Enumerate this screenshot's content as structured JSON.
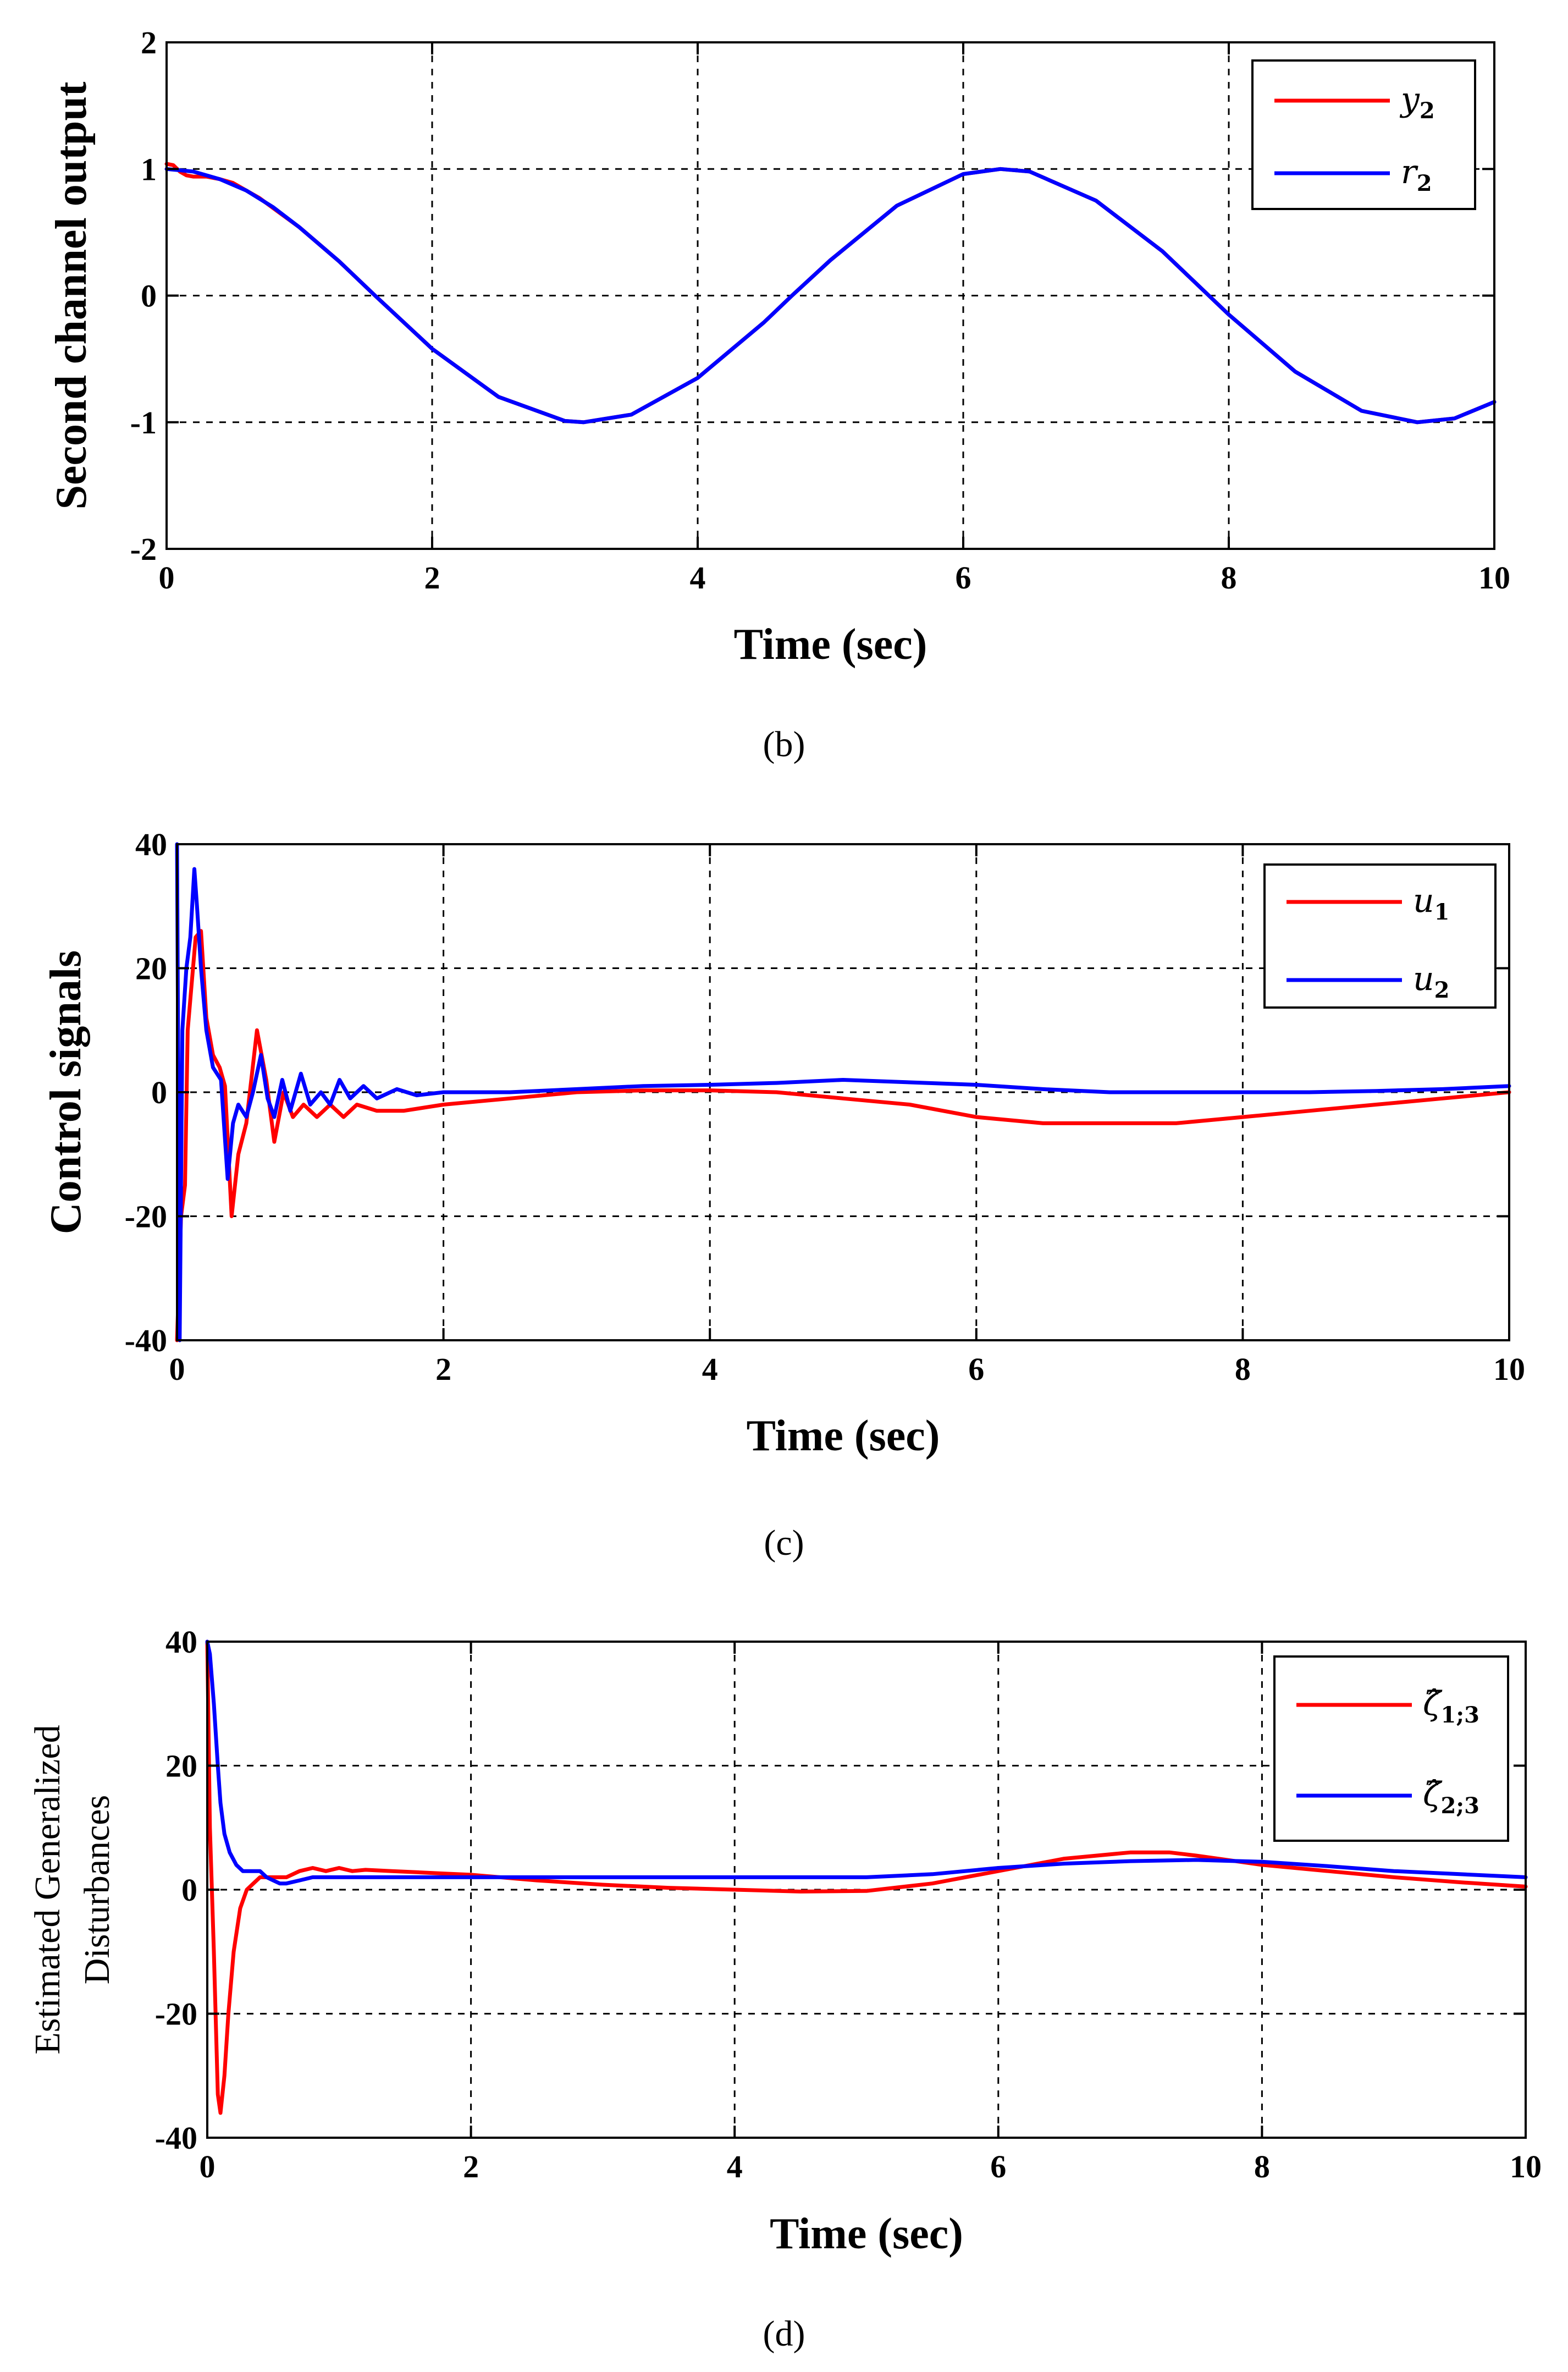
{
  "colors": {
    "y2": "#ff0000",
    "r2": "#0000ff",
    "u1": "#ff0000",
    "u2": "#0000ff",
    "z1": "#ff0000",
    "z2": "#0000ff"
  },
  "chart_data": [
    {
      "id": "b",
      "type": "line",
      "caption": "(b)",
      "xlabel": "Time (sec)",
      "ylabel": "Second channel output",
      "xlim": [
        0,
        10
      ],
      "ylim": [
        -2,
        2
      ],
      "xticks": [
        0,
        2,
        4,
        6,
        8,
        10
      ],
      "yticks": [
        -2,
        -1,
        0,
        1,
        2
      ],
      "xtick_labels": [
        "0",
        "2",
        "4",
        "6",
        "8",
        "10"
      ],
      "ytick_labels": [
        "-2",
        "-1",
        "0",
        "1",
        "2"
      ],
      "grid": true,
      "legend_position": "top-right",
      "series": [
        {
          "name": "y",
          "subscript": "2",
          "color_key": "y2",
          "x": [
            0,
            0.05,
            0.1,
            0.15,
            0.2,
            0.3,
            0.4,
            0.5,
            0.7,
            1,
            1.3,
            1.57,
            2,
            2.5,
            3,
            3.14,
            3.5,
            4,
            4.5,
            4.71,
            5,
            5.5,
            6,
            6.28,
            6.5,
            7,
            7.5,
            7.85,
            8,
            8.5,
            9,
            9.42,
            9.7,
            10
          ],
          "y": [
            1.04,
            1.03,
            0.98,
            0.95,
            0.94,
            0.94,
            0.92,
            0.89,
            0.77,
            0.54,
            0.27,
            0.0,
            -0.42,
            -0.8,
            -0.99,
            -1.0,
            -0.94,
            -0.65,
            -0.21,
            0.0,
            0.28,
            0.71,
            0.96,
            1.0,
            0.98,
            0.75,
            0.35,
            0.0,
            -0.15,
            -0.6,
            -0.91,
            -1.0,
            -0.97,
            -0.84
          ]
        },
        {
          "name": "r",
          "subscript": "2",
          "color_key": "r2",
          "x": [
            0,
            0.2,
            0.4,
            0.6,
            0.8,
            1,
            1.3,
            1.57,
            2,
            2.5,
            3,
            3.14,
            3.5,
            4,
            4.5,
            4.71,
            5,
            5.5,
            6,
            6.28,
            6.5,
            7,
            7.5,
            7.85,
            8,
            8.5,
            9,
            9.42,
            9.7,
            10
          ],
          "y": [
            1.0,
            0.98,
            0.92,
            0.83,
            0.7,
            0.54,
            0.27,
            0.0,
            -0.42,
            -0.8,
            -0.99,
            -1.0,
            -0.94,
            -0.65,
            -0.21,
            0.0,
            0.28,
            0.71,
            0.96,
            1.0,
            0.98,
            0.75,
            0.35,
            0.0,
            -0.15,
            -0.6,
            -0.91,
            -1.0,
            -0.97,
            -0.84
          ]
        }
      ]
    },
    {
      "id": "c",
      "type": "line",
      "caption": "(c)",
      "xlabel": "Time (sec)",
      "ylabel": "Control signals",
      "xlim": [
        0,
        10
      ],
      "ylim": [
        -40,
        40
      ],
      "xticks": [
        0,
        2,
        4,
        6,
        8,
        10
      ],
      "yticks": [
        -40,
        -20,
        0,
        20,
        40
      ],
      "xtick_labels": [
        "0",
        "2",
        "4",
        "6",
        "8",
        "10"
      ],
      "ytick_labels": [
        "-40",
        "-20",
        "0",
        "20",
        "40"
      ],
      "grid": true,
      "legend_position": "top-right",
      "series": [
        {
          "name": "u",
          "subscript": "1",
          "color_key": "u1",
          "x": [
            0,
            0.03,
            0.06,
            0.08,
            0.1,
            0.14,
            0.18,
            0.22,
            0.27,
            0.32,
            0.36,
            0.41,
            0.46,
            0.52,
            0.6,
            0.67,
            0.73,
            0.8,
            0.87,
            0.95,
            1.05,
            1.15,
            1.25,
            1.35,
            1.5,
            1.7,
            2,
            2.5,
            3,
            3.5,
            4,
            4.5,
            5,
            5.5,
            6,
            6.5,
            7,
            7.5,
            8,
            8.5,
            9,
            9.5,
            10
          ],
          "y": [
            -40,
            -20,
            -15,
            10,
            15,
            25,
            26,
            12,
            6,
            4,
            1,
            -20,
            -10,
            -5,
            10,
            2,
            -8,
            0,
            -4,
            -2,
            -4,
            -2,
            -4,
            -2,
            -3,
            -3,
            -2,
            -1,
            0,
            0.3,
            0.3,
            0,
            -1,
            -2,
            -4,
            -5,
            -5,
            -5,
            -4,
            -3,
            -2,
            -1,
            0
          ]
        },
        {
          "name": "u",
          "subscript": "2",
          "color_key": "u2",
          "x": [
            0,
            0.02,
            0.04,
            0.07,
            0.1,
            0.13,
            0.15,
            0.18,
            0.22,
            0.27,
            0.33,
            0.38,
            0.42,
            0.46,
            0.52,
            0.57,
            0.63,
            0.68,
            0.73,
            0.79,
            0.85,
            0.93,
            1.0,
            1.08,
            1.15,
            1.22,
            1.3,
            1.4,
            1.5,
            1.65,
            1.8,
            2,
            2.5,
            3,
            3.5,
            4,
            4.5,
            5,
            5.5,
            6,
            6.5,
            7,
            7.5,
            8,
            8.5,
            9,
            9.5,
            10
          ],
          "y": [
            40,
            -40,
            10,
            20,
            25,
            36,
            30,
            20,
            10,
            4,
            2,
            -14,
            -5,
            -2,
            -4,
            0,
            6,
            -1,
            -4,
            2,
            -3,
            3,
            -2,
            0,
            -2,
            2,
            -1,
            1,
            -1,
            0.5,
            -0.5,
            0,
            0,
            0.5,
            1,
            1.2,
            1.5,
            2,
            1.6,
            1.2,
            0.5,
            0,
            0,
            0,
            0,
            0.2,
            0.5,
            1
          ]
        }
      ]
    },
    {
      "id": "d",
      "type": "line",
      "caption": "(d)",
      "xlabel": "Time (sec)",
      "ylabel_lines": [
        "Estimated Generalized",
        "Disturbances"
      ],
      "xlim": [
        0,
        10
      ],
      "ylim": [
        -40,
        40
      ],
      "xticks": [
        0,
        2,
        4,
        6,
        8,
        10
      ],
      "yticks": [
        -40,
        -20,
        0,
        20,
        40
      ],
      "xtick_labels": [
        "0",
        "2",
        "4",
        "6",
        "8",
        "10"
      ],
      "ytick_labels": [
        "-40",
        "-20",
        "0",
        "20",
        "40"
      ],
      "grid": true,
      "legend_position": "top-right",
      "series": [
        {
          "name": "ζ̂",
          "subscript": "1;3",
          "color_key": "z1",
          "x": [
            0,
            0.02,
            0.05,
            0.08,
            0.1,
            0.13,
            0.16,
            0.2,
            0.25,
            0.3,
            0.35,
            0.4,
            0.5,
            0.6,
            0.7,
            0.8,
            0.9,
            1.0,
            1.1,
            1.2,
            1.4,
            1.6,
            1.8,
            2,
            2.5,
            3,
            3.5,
            4,
            4.5,
            5,
            5.5,
            6,
            6.5,
            7,
            7.3,
            7.5,
            8,
            8.5,
            9,
            9.5,
            10
          ],
          "y": [
            40,
            10,
            -10,
            -33,
            -36,
            -30,
            -20,
            -10,
            -3,
            0,
            1,
            2,
            2,
            2,
            3,
            3.5,
            3,
            3.5,
            3,
            3.2,
            3,
            2.8,
            2.6,
            2.4,
            1.5,
            0.8,
            0.3,
            0,
            -0.3,
            -0.2,
            1,
            3,
            5,
            6,
            6,
            5.5,
            4,
            3,
            2,
            1.2,
            0.5
          ]
        },
        {
          "name": "ζ̂",
          "subscript": "2;3",
          "color_key": "z2",
          "x": [
            0,
            0.02,
            0.05,
            0.08,
            0.1,
            0.13,
            0.17,
            0.22,
            0.27,
            0.33,
            0.4,
            0.45,
            0.5,
            0.55,
            0.6,
            0.7,
            0.8,
            1.0,
            1.2,
            1.5,
            2,
            2.5,
            3,
            3.5,
            4,
            4.5,
            5,
            5.5,
            6,
            6.5,
            7,
            7.5,
            8,
            8.5,
            9,
            9.5,
            10
          ],
          "y": [
            40,
            38,
            30,
            20,
            14,
            9,
            6,
            4,
            3,
            3,
            3,
            2,
            1.5,
            1,
            1,
            1.5,
            2,
            2,
            2,
            2,
            2,
            2,
            2,
            2,
            2,
            2,
            2,
            2.5,
            3.5,
            4.2,
            4.6,
            4.8,
            4.5,
            3.8,
            3,
            2.5,
            2
          ]
        }
      ]
    }
  ]
}
